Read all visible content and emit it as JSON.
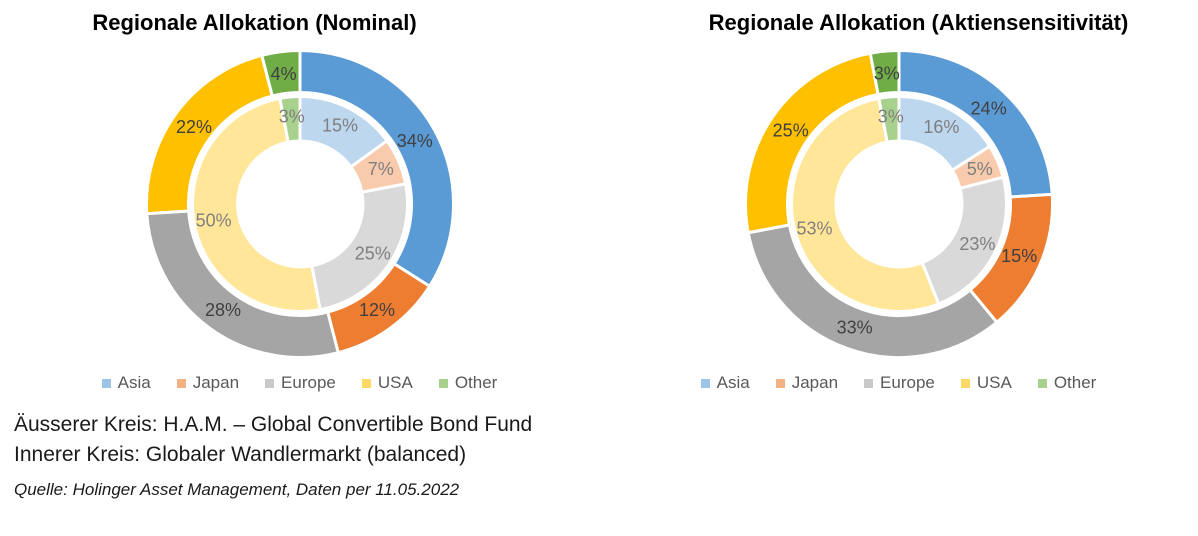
{
  "chart_data": [
    {
      "type": "pie",
      "subtype": "nested-donut",
      "title": "Regionale Allokation (Nominal)",
      "categories": [
        "Asia",
        "Japan",
        "Europe",
        "USA",
        "Other"
      ],
      "series": [
        {
          "ring": "outer",
          "name": "Äusserer Kreis: H.A.M. – Global Convertible Bond Fund",
          "values": [
            34,
            12,
            28,
            22,
            4
          ]
        },
        {
          "ring": "inner",
          "name": "Innerer Kreis: Globaler Wandlermarkt (balanced)",
          "values": [
            15,
            7,
            25,
            50,
            3
          ]
        }
      ],
      "data_label_format": "percent",
      "start_angle_deg": 0,
      "direction": "clockwise",
      "legend_position": "bottom"
    },
    {
      "type": "pie",
      "subtype": "nested-donut",
      "title": "Regionale Allokation (Aktiensensitivität)",
      "categories": [
        "Asia",
        "Japan",
        "Europe",
        "USA",
        "Other"
      ],
      "series": [
        {
          "ring": "outer",
          "name": "Äusserer Kreis: H.A.M. – Global Convertible Bond Fund",
          "values": [
            24,
            15,
            33,
            25,
            3
          ]
        },
        {
          "ring": "inner",
          "name": "Innerer Kreis: Globaler Wandlermarkt (balanced)",
          "values": [
            16,
            5,
            23,
            53,
            3
          ]
        }
      ],
      "data_label_format": "percent",
      "start_angle_deg": 0,
      "direction": "clockwise",
      "legend_position": "bottom"
    }
  ],
  "colors": {
    "outer_ring": [
      "#5B9BD5",
      "#ED7D31",
      "#A5A5A5",
      "#FFC000",
      "#70AD47"
    ],
    "inner_ring": [
      "#BDD7EE",
      "#F8CBAD",
      "#D9D9D9",
      "#FFE699",
      "#A9D18E"
    ],
    "legend_swatches": [
      "#9DC3E6",
      "#F4B183",
      "#C9C9C9",
      "#FFD966",
      "#A9D18E"
    ],
    "outer_label_text": "#404040",
    "inner_label_text": "#7F7F7F",
    "legend_text": "#595959",
    "slice_border": "#FFFFFF"
  },
  "footer": {
    "line1": "Äusserer Kreis: H.A.M. – Global Convertible Bond Fund",
    "line2": "Innerer Kreis: Globaler Wandlermarkt (balanced)",
    "source": "Quelle: Holinger Asset Management, Daten per 11.05.2022"
  }
}
